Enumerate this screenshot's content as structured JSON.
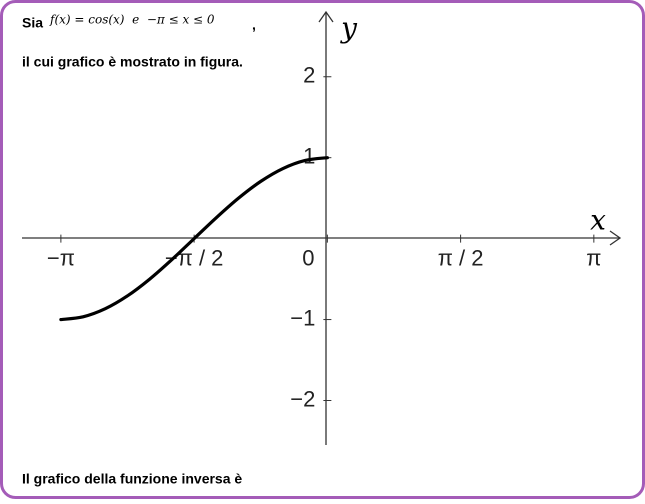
{
  "prompt": {
    "lead": "Sia",
    "formula": "f(x) = cos(x)  e  −π ≤ x ≤ 0",
    "comma": ",",
    "line2": "il cui grafico è mostrato in figura.",
    "question": "Il grafico della funzione inversa è"
  },
  "chart_data": {
    "type": "line",
    "x_label": "x",
    "y_label": "y",
    "x": [
      -3.1416,
      -2.8798,
      -2.618,
      -2.3562,
      -2.0944,
      -1.8326,
      -1.5708,
      -1.309,
      -1.0472,
      -0.7854,
      -0.5236,
      -0.2618,
      0
    ],
    "values": [
      -1,
      -0.9659,
      -0.866,
      -0.7071,
      -0.5,
      -0.2588,
      0,
      0.2588,
      0.5,
      0.7071,
      0.866,
      0.9659,
      1
    ],
    "color": "#000000",
    "xlim": [
      -3.6,
      3.45
    ],
    "ylim": [
      -2.55,
      2.8
    ],
    "xticks": [
      {
        "value": -3.1416,
        "label": "−π"
      },
      {
        "value": -1.5708,
        "label": "−π / 2"
      },
      {
        "value": 0,
        "label": "0"
      },
      {
        "value": 1.5708,
        "label": "π / 2"
      },
      {
        "value": 3.1416,
        "label": "π"
      }
    ],
    "yticks": [
      {
        "value": -2,
        "label": "−2"
      },
      {
        "value": -1,
        "label": "−1"
      },
      1,
      2
    ]
  }
}
